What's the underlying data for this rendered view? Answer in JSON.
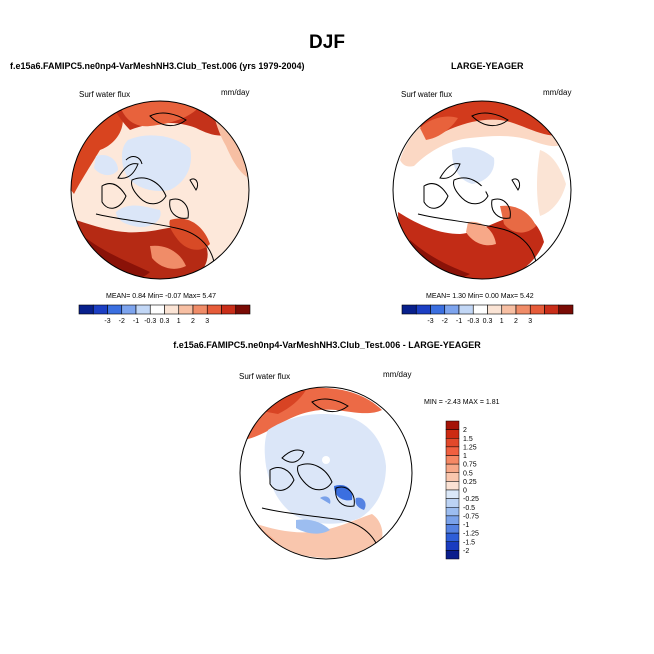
{
  "figure": {
    "title": "DJF"
  },
  "chart_data": [
    {
      "type": "heatmap",
      "projection": "north-polar-stereographic",
      "title": "f.e15a6.FAMIPC5.ne0np4-VarMeshNH3.Club_Test.006 (yrs 1979-2004)",
      "variable": "Surf water flux",
      "units": "mm/day",
      "stats": {
        "mean_label": "MEAN=",
        "mean": "0.84",
        "min_label": "Min=",
        "min": "-0.07",
        "max_label": "Max=",
        "max": "5.47"
      },
      "colorbar": {
        "orientation": "horizontal",
        "levels": [
          "-3",
          "-2",
          "-1",
          "-0.3",
          "0.3",
          "1",
          "2",
          "3"
        ],
        "colors": [
          "#08208c",
          "#1c3fc4",
          "#3b6fe0",
          "#7da4ee",
          "#c2d7f6",
          "#ffffff",
          "#fbe4d5",
          "#f7bfa3",
          "#f08c68",
          "#e65c3a",
          "#c92e19",
          "#7a0b05"
        ]
      }
    },
    {
      "type": "heatmap",
      "projection": "north-polar-stereographic",
      "title": "LARGE-YEAGER",
      "variable": "Surf water flux",
      "units": "mm/day",
      "stats": {
        "mean_label": "MEAN=",
        "mean": "1.30",
        "min_label": "Min=",
        "min": "0.00",
        "max_label": "Max=",
        "max": "5.42"
      },
      "colorbar": {
        "orientation": "horizontal",
        "levels": [
          "-3",
          "-2",
          "-1",
          "-0.3",
          "0.3",
          "1",
          "2",
          "3"
        ],
        "colors": [
          "#08208c",
          "#1c3fc4",
          "#3b6fe0",
          "#7da4ee",
          "#c2d7f6",
          "#ffffff",
          "#fbe4d5",
          "#f7bfa3",
          "#f08c68",
          "#e65c3a",
          "#c92e19",
          "#7a0b05"
        ]
      }
    },
    {
      "type": "heatmap",
      "projection": "north-polar-stereographic",
      "title": "f.e15a6.FAMIPC5.ne0np4-VarMeshNH3.Club_Test.006 - LARGE-YEAGER",
      "variable": "Surf water flux",
      "units": "mm/day",
      "stats": {
        "min_label": "MIN =",
        "min": "-2.43",
        "max_label": "MAX =",
        "max": "1.81"
      },
      "colorbar": {
        "orientation": "vertical",
        "levels": [
          "2",
          "1.5",
          "1.25",
          "1",
          "0.75",
          "0.5",
          "0.25",
          "0",
          "-0.25",
          "-0.5",
          "-0.75",
          "-1",
          "-1.25",
          "-1.5",
          "-2"
        ],
        "colors": [
          "#a51408",
          "#cc2a12",
          "#e2482a",
          "#f06040",
          "#f58864",
          "#f7a888",
          "#f9c6ad",
          "#fbe2d4",
          "#dbe8f8",
          "#bcd3f4",
          "#9cbdf0",
          "#7aa2ea",
          "#5582e2",
          "#2e5ed8",
          "#1a3cc0",
          "#0a1e8c"
        ]
      }
    }
  ]
}
